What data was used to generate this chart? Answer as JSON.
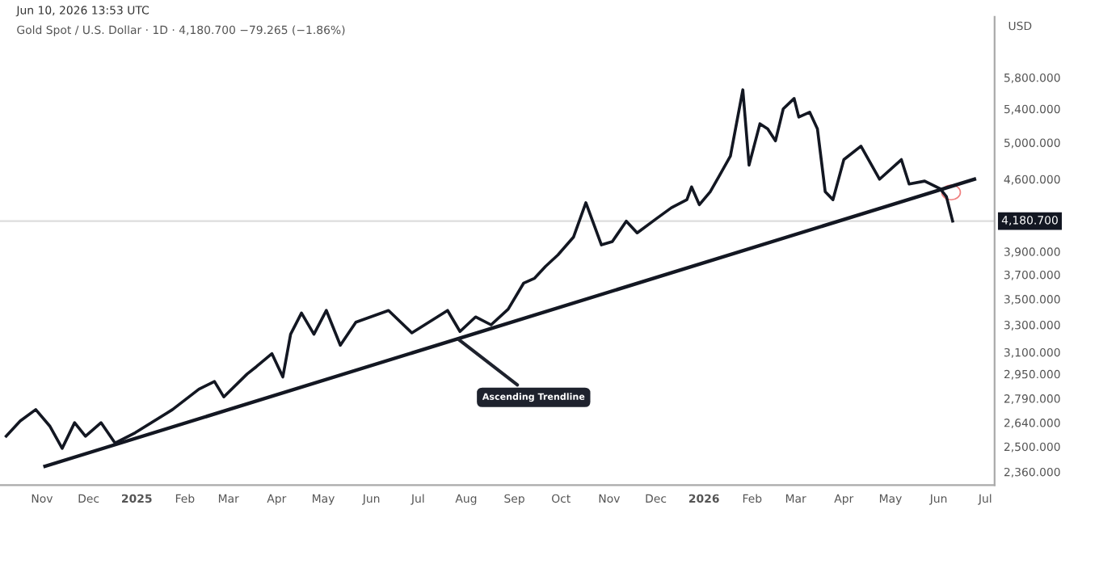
{
  "chart_data": {
    "type": "line",
    "title": "Gold Spot / U.S. Dollar · 1D · 4,180.700 −79.265 (−1.86%)",
    "ylabel": "USD",
    "annotations": [
      "Jun 10, 2026 13:53 UTC",
      {
        "text": "Ascending Trendline",
        "x": "2025-07-25",
        "y": 3210
      }
    ],
    "log": true,
    "grid": false,
    "xlim": [
      "2024-10-05",
      "2026-07-07"
    ],
    "xticks": [
      {
        "value": "2024-11-01",
        "label": "Nov"
      },
      {
        "value": "2024-12-01",
        "label": "Dec"
      },
      {
        "value": "2025-01-01",
        "label": "2025"
      },
      {
        "value": "2025-02-01",
        "label": "Feb"
      },
      {
        "value": "2025-03-01",
        "label": "Mar"
      },
      {
        "value": "2025-04-01",
        "label": "Apr"
      },
      {
        "value": "2025-05-01",
        "label": "May"
      },
      {
        "value": "2025-06-01",
        "label": "Jun"
      },
      {
        "value": "2025-07-01",
        "label": "Jul"
      },
      {
        "value": "2025-08-01",
        "label": "Aug"
      },
      {
        "value": "2025-09-01",
        "label": "Sep"
      },
      {
        "value": "2025-10-01",
        "label": "Oct"
      },
      {
        "value": "2025-11-01",
        "label": "Nov"
      },
      {
        "value": "2025-12-01",
        "label": "Dec"
      },
      {
        "value": "2026-01-01",
        "label": "2026"
      },
      {
        "value": "2026-02-01",
        "label": "Feb"
      },
      {
        "value": "2026-03-01",
        "label": "Mar"
      },
      {
        "value": "2026-04-01",
        "label": "Apr"
      },
      {
        "value": "2026-05-01",
        "label": "May"
      },
      {
        "value": "2026-06-01",
        "label": "Jun"
      },
      {
        "value": "2026-07-01",
        "label": "Jul"
      }
    ],
    "ylim": [
      2290,
      6660
    ],
    "yticks": [
      {
        "value": 2360,
        "label": "2,360.000"
      },
      {
        "value": 2500,
        "label": "2,500.000"
      },
      {
        "value": 2640,
        "label": "2,640.000"
      },
      {
        "value": 2790,
        "label": "2,790.000"
      },
      {
        "value": 2950,
        "label": "2,950.000"
      },
      {
        "value": 3100,
        "label": "3,100.000"
      },
      {
        "value": 3300,
        "label": "3,300.000"
      },
      {
        "value": 3500,
        "label": "3,500.000"
      },
      {
        "value": 3700,
        "label": "3,700.000"
      },
      {
        "value": 3900,
        "label": "3,900.000"
      },
      {
        "value": 4600,
        "label": "4,600.000"
      },
      {
        "value": 5000,
        "label": "5,000.000"
      },
      {
        "value": 5400,
        "label": "5,400.000"
      },
      {
        "value": 5800,
        "label": "5,800.000"
      }
    ],
    "ref_lines": [
      {
        "axis": "y",
        "value": 4180.7,
        "label": "4,180.700",
        "color": "#dddddd"
      }
    ],
    "series": [
      {
        "color": "#131722",
        "x": [
          "2024-10-09",
          "2024-10-18",
          "2024-10-28",
          "2024-11-06",
          "2024-11-14",
          "2024-11-22",
          "2024-11-29",
          "2024-12-09",
          "2024-12-18",
          "2024-12-31",
          "2025-01-24",
          "2025-02-10",
          "2025-02-20",
          "2025-02-26",
          "2025-03-13",
          "2025-03-19",
          "2025-03-29",
          "2025-04-05",
          "2025-04-10",
          "2025-04-17",
          "2025-04-25",
          "2025-05-03",
          "2025-05-12",
          "2025-05-22",
          "2025-06-12",
          "2025-06-27",
          "2025-07-20",
          "2025-07-28",
          "2025-08-07",
          "2025-08-17",
          "2025-08-28",
          "2025-09-07",
          "2025-09-14",
          "2025-09-21",
          "2025-09-29",
          "2025-10-09",
          "2025-10-17",
          "2025-10-27",
          "2025-11-03",
          "2025-11-12",
          "2025-11-19",
          "2025-12-01",
          "2025-12-11",
          "2025-12-21",
          "2025-12-24",
          "2025-12-29",
          "2026-01-05",
          "2026-01-11",
          "2026-01-18",
          "2026-01-26",
          "2026-01-30",
          "2026-02-06",
          "2026-02-11",
          "2026-02-16",
          "2026-02-21",
          "2026-02-28",
          "2026-03-03",
          "2026-03-10",
          "2026-03-15",
          "2026-03-20",
          "2026-03-25",
          "2026-04-01",
          "2026-04-12",
          "2026-04-24",
          "2026-05-08",
          "2026-05-13",
          "2026-05-23",
          "2026-06-02",
          "2026-06-06",
          "2026-06-10"
        ],
        "values": [
          2560,
          2650,
          2720,
          2620,
          2490,
          2640,
          2560,
          2640,
          2520,
          2580,
          2720,
          2850,
          2900,
          2800,
          2950,
          3000,
          3090,
          2930,
          3230,
          3390,
          3230,
          3410,
          3150,
          3320,
          3410,
          3240,
          3410,
          3250,
          3360,
          3300,
          3420,
          3630,
          3670,
          3770,
          3870,
          4030,
          4360,
          3960,
          3990,
          4180,
          4070,
          4200,
          4310,
          4390,
          4520,
          4340,
          4470,
          4640,
          4850,
          5640,
          4750,
          5220,
          5160,
          5020,
          5400,
          5530,
          5300,
          5360,
          5160,
          4470,
          4390,
          4810,
          4960,
          4600,
          4810,
          4550,
          4580,
          4500,
          4420,
          4180.7
        ]
      },
      {
        "color": "#131722",
        "x": [
          "2024-11-03",
          "2026-06-24"
        ],
        "values": [
          2390,
          4600
        ]
      }
    ]
  }
}
